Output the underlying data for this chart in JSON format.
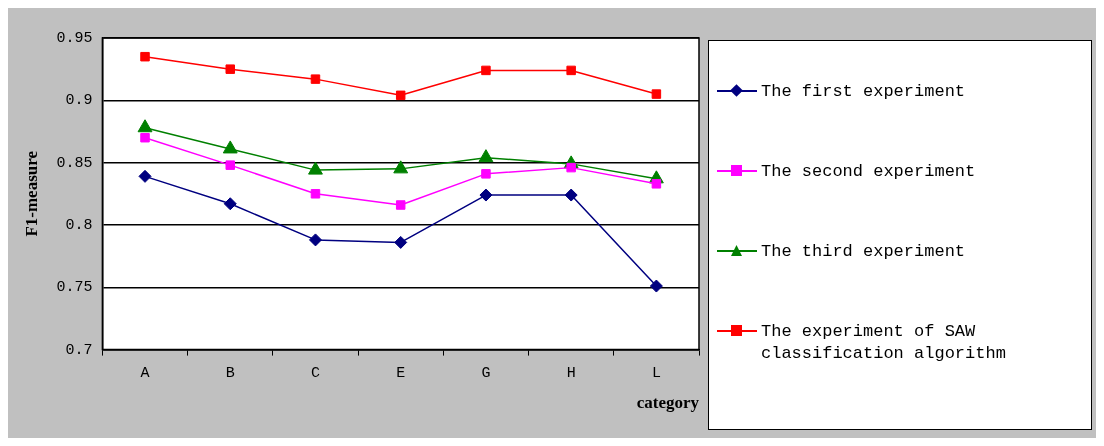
{
  "chart_data": {
    "type": "line",
    "xlabel": "category",
    "ylabel": "F1-measure",
    "categories": [
      "A",
      "B",
      "C",
      "E",
      "G",
      "H",
      "L"
    ],
    "series": [
      {
        "name": "The first experiment",
        "color": "#000080",
        "marker": "diamond",
        "values": [
          0.839,
          0.817,
          0.788,
          0.786,
          0.824,
          0.824,
          0.751
        ]
      },
      {
        "name": "The second experiment",
        "color": "#ff00ff",
        "marker": "square",
        "values": [
          0.87,
          0.848,
          0.825,
          0.816,
          0.841,
          0.846,
          0.833
        ]
      },
      {
        "name": "The third experiment",
        "color": "#008000",
        "marker": "triangle",
        "values": [
          0.878,
          0.861,
          0.844,
          0.845,
          0.854,
          0.849,
          0.837
        ]
      },
      {
        "name": "The experiment of SAW classification algorithm",
        "color": "#ff0000",
        "marker": "square",
        "values": [
          0.935,
          0.925,
          0.917,
          0.904,
          0.924,
          0.924,
          0.905
        ]
      }
    ],
    "ylim": [
      0.7,
      0.95
    ],
    "yticks": [
      {
        "value": 0.7,
        "label": "0.7"
      },
      {
        "value": 0.75,
        "label": "0.75"
      },
      {
        "value": 0.8,
        "label": "0.8"
      },
      {
        "value": 0.85,
        "label": "0.85"
      },
      {
        "value": 0.9,
        "label": "0.9"
      },
      {
        "value": 0.95,
        "label": "0.95"
      }
    ],
    "grid": "y",
    "legend": "right",
    "line_style": "solid"
  }
}
